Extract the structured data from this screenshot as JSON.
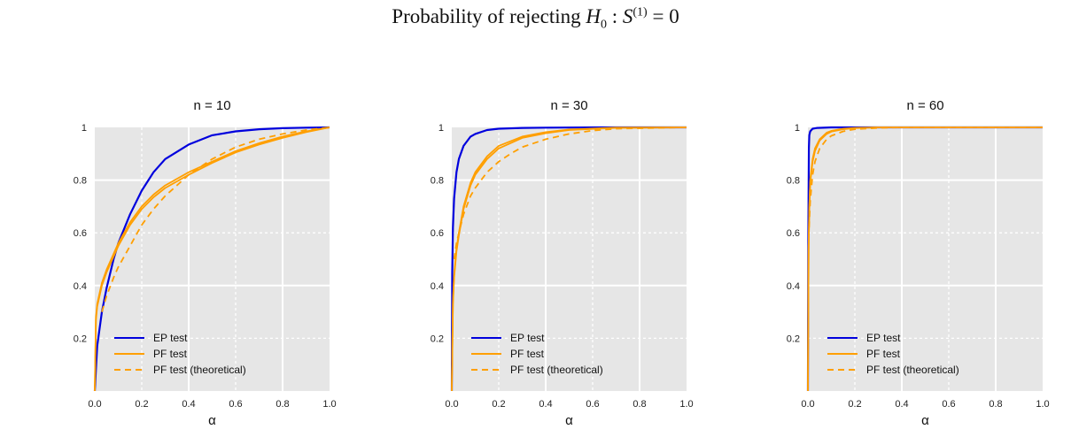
{
  "title": {
    "prefix": "Probability of rejecting ",
    "H": "H",
    "H_sub": "0",
    "colon": " : ",
    "S": "S",
    "S_sup": "(1)",
    "eq": " = 0"
  },
  "colors": {
    "ep": "#0000dd",
    "pf": "#ff9f00",
    "panel_bg": "#e6e6e6",
    "grid": "#ffffff"
  },
  "legend": {
    "ep": "EP test",
    "pf": "PF test",
    "pf_theory": "PF test (theoretical)"
  },
  "chart_data": [
    {
      "type": "line",
      "title": "n = 10",
      "xlabel": "α",
      "ylabel": "",
      "xlim": [
        0,
        1
      ],
      "ylim": [
        0,
        1
      ],
      "xticks": [
        "0.0",
        "0.2",
        "0.4",
        "0.6",
        "0.8",
        "1.0"
      ],
      "yticks": [
        "0.2",
        "0.4",
        "0.6",
        "0.8",
        "1"
      ],
      "grid": true,
      "legend_position": "lower-left",
      "series": [
        {
          "key": "ep",
          "style": "solid",
          "x": [
            0,
            0.01,
            0.03,
            0.05,
            0.08,
            0.1,
            0.15,
            0.2,
            0.25,
            0.3,
            0.4,
            0.5,
            0.6,
            0.7,
            0.8,
            0.9,
            1.0
          ],
          "y": [
            0,
            0.17,
            0.3,
            0.39,
            0.5,
            0.56,
            0.67,
            0.76,
            0.83,
            0.88,
            0.935,
            0.97,
            0.985,
            0.993,
            0.997,
            0.999,
            1.0
          ]
        },
        {
          "key": "pf",
          "style": "solid",
          "x": [
            0,
            0.005,
            0.01,
            0.03,
            0.05,
            0.1,
            0.15,
            0.2,
            0.25,
            0.3,
            0.4,
            0.5,
            0.6,
            0.7,
            0.8,
            0.9,
            1.0
          ],
          "y": [
            0,
            0.28,
            0.33,
            0.41,
            0.46,
            0.56,
            0.64,
            0.7,
            0.745,
            0.78,
            0.83,
            0.87,
            0.91,
            0.94,
            0.965,
            0.985,
            1.0
          ]
        },
        {
          "key": "pf",
          "style": "solid",
          "x": [
            0,
            0.005,
            0.01,
            0.03,
            0.05,
            0.1,
            0.15,
            0.2,
            0.25,
            0.3,
            0.4,
            0.5,
            0.6,
            0.7,
            0.8,
            0.9,
            1.0
          ],
          "y": [
            0,
            0.27,
            0.32,
            0.4,
            0.45,
            0.55,
            0.63,
            0.69,
            0.735,
            0.77,
            0.82,
            0.865,
            0.905,
            0.935,
            0.96,
            0.982,
            1.0
          ]
        },
        {
          "key": "pf_theory",
          "style": "dashed",
          "x": [
            0.03,
            0.05,
            0.08,
            0.1,
            0.15,
            0.2,
            0.25,
            0.3,
            0.4,
            0.5,
            0.6,
            0.7,
            0.8,
            0.9,
            1.0
          ],
          "y": [
            0.3,
            0.36,
            0.43,
            0.47,
            0.55,
            0.63,
            0.69,
            0.74,
            0.82,
            0.88,
            0.925,
            0.955,
            0.975,
            0.99,
            1.0
          ]
        }
      ]
    },
    {
      "type": "line",
      "title": "n = 30",
      "xlabel": "α",
      "ylabel": "",
      "xlim": [
        0,
        1
      ],
      "ylim": [
        0,
        1
      ],
      "xticks": [
        "0.0",
        "0.2",
        "0.4",
        "0.6",
        "0.8",
        "1.0"
      ],
      "yticks": [
        "0.2",
        "0.4",
        "0.6",
        "0.8",
        "1"
      ],
      "grid": true,
      "legend_position": "lower-left",
      "series": [
        {
          "key": "ep",
          "style": "solid",
          "x": [
            0,
            0.002,
            0.005,
            0.01,
            0.02,
            0.03,
            0.05,
            0.08,
            0.1,
            0.15,
            0.2,
            0.3,
            0.4,
            0.6,
            1.0
          ],
          "y": [
            0,
            0.45,
            0.62,
            0.73,
            0.83,
            0.88,
            0.93,
            0.965,
            0.975,
            0.99,
            0.995,
            0.998,
            0.999,
            1.0,
            1.0
          ]
        },
        {
          "key": "pf",
          "style": "solid",
          "x": [
            0,
            0.005,
            0.01,
            0.02,
            0.03,
            0.05,
            0.08,
            0.1,
            0.15,
            0.2,
            0.3,
            0.4,
            0.5,
            0.7,
            1.0
          ],
          "y": [
            0,
            0.34,
            0.44,
            0.54,
            0.6,
            0.7,
            0.79,
            0.83,
            0.89,
            0.93,
            0.965,
            0.982,
            0.992,
            0.999,
            1.0
          ]
        },
        {
          "key": "pf",
          "style": "solid",
          "x": [
            0,
            0.005,
            0.01,
            0.02,
            0.03,
            0.05,
            0.08,
            0.1,
            0.15,
            0.2,
            0.3,
            0.4,
            0.5,
            0.7,
            1.0
          ],
          "y": [
            0,
            0.33,
            0.43,
            0.53,
            0.59,
            0.69,
            0.78,
            0.82,
            0.88,
            0.92,
            0.96,
            0.978,
            0.99,
            0.998,
            1.0
          ]
        },
        {
          "key": "pf_theory",
          "style": "dashed",
          "x": [
            0.01,
            0.02,
            0.03,
            0.05,
            0.08,
            0.1,
            0.15,
            0.2,
            0.25,
            0.3,
            0.4,
            0.5,
            0.6,
            0.7,
            1.0
          ],
          "y": [
            0.5,
            0.56,
            0.6,
            0.67,
            0.74,
            0.77,
            0.83,
            0.87,
            0.9,
            0.925,
            0.955,
            0.975,
            0.988,
            0.995,
            1.0
          ]
        }
      ]
    },
    {
      "type": "line",
      "title": "n = 60",
      "xlabel": "α",
      "ylabel": "",
      "xlim": [
        0,
        1
      ],
      "ylim": [
        0,
        1
      ],
      "xticks": [
        "0.0",
        "0.2",
        "0.4",
        "0.6",
        "0.8",
        "1.0"
      ],
      "yticks": [
        "0.2",
        "0.4",
        "0.6",
        "0.8",
        "1"
      ],
      "grid": true,
      "legend_position": "lower-left",
      "series": [
        {
          "key": "ep",
          "style": "solid",
          "x": [
            0,
            0.002,
            0.004,
            0.006,
            0.01,
            0.02,
            0.04,
            0.1,
            1.0
          ],
          "y": [
            0,
            0.6,
            0.92,
            0.97,
            0.985,
            0.995,
            0.998,
            1.0,
            1.0
          ]
        },
        {
          "key": "pf",
          "style": "solid",
          "x": [
            0,
            0.003,
            0.006,
            0.01,
            0.02,
            0.03,
            0.05,
            0.08,
            0.1,
            0.15,
            0.2,
            0.3,
            1.0
          ],
          "y": [
            0,
            0.55,
            0.7,
            0.8,
            0.88,
            0.92,
            0.955,
            0.98,
            0.987,
            0.995,
            0.998,
            1.0,
            1.0
          ]
        },
        {
          "key": "pf",
          "style": "solid",
          "x": [
            0,
            0.003,
            0.006,
            0.01,
            0.02,
            0.03,
            0.05,
            0.08,
            0.1,
            0.15,
            0.2,
            0.3,
            1.0
          ],
          "y": [
            0,
            0.54,
            0.69,
            0.79,
            0.87,
            0.91,
            0.95,
            0.975,
            0.984,
            0.993,
            0.997,
            1.0,
            1.0
          ]
        },
        {
          "key": "pf_theory",
          "style": "dashed",
          "x": [
            0.005,
            0.01,
            0.02,
            0.03,
            0.05,
            0.08,
            0.1,
            0.15,
            0.2,
            0.3,
            0.4,
            1.0
          ],
          "y": [
            0.62,
            0.72,
            0.82,
            0.87,
            0.92,
            0.955,
            0.968,
            0.985,
            0.993,
            0.998,
            1.0,
            1.0
          ]
        }
      ]
    }
  ]
}
